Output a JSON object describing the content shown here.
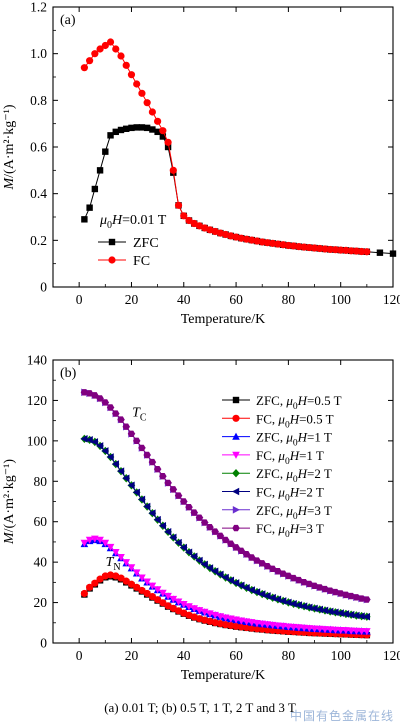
{
  "chart_data": [
    {
      "type": "scatter",
      "panel_label": "(a)",
      "xlabel": "Temperature/K",
      "ylabel_main": "M",
      "ylabel_unit": "/(A·m²·kg⁻¹)",
      "xlim": [
        -10,
        120
      ],
      "ylim": [
        0,
        1.2
      ],
      "xticks": [
        0,
        20,
        40,
        60,
        80,
        100,
        120
      ],
      "yticks": [
        0,
        0.2,
        0.4,
        0.6,
        0.8,
        1.0,
        1.2
      ],
      "ytick_labels": [
        "0",
        "0.2",
        "0.4",
        "0.6",
        "0.8",
        "1.0",
        "1.2"
      ],
      "field_annotation": "μ0H=0.01 T",
      "legend_position": "bottom-left",
      "series": [
        {
          "name": "ZFC",
          "color": "#000000",
          "marker": "square",
          "x": [
            2,
            4,
            6,
            8,
            10,
            12,
            14,
            16,
            18,
            20,
            22,
            24,
            26,
            28,
            30,
            32,
            34,
            36,
            38,
            40,
            42,
            44,
            46,
            48,
            50,
            52,
            54,
            56,
            58,
            60,
            62,
            64,
            66,
            68,
            70,
            72,
            74,
            76,
            78,
            80,
            82,
            84,
            86,
            88,
            90,
            92,
            94,
            96,
            98,
            100,
            102,
            104,
            106,
            108,
            110,
            115,
            120
          ],
          "y": [
            0.29,
            0.34,
            0.42,
            0.5,
            0.58,
            0.65,
            0.665,
            0.673,
            0.678,
            0.682,
            0.684,
            0.684,
            0.682,
            0.675,
            0.665,
            0.645,
            0.6,
            0.49,
            0.35,
            0.305,
            0.285,
            0.272,
            0.262,
            0.253,
            0.245,
            0.238,
            0.231,
            0.225,
            0.219,
            0.214,
            0.209,
            0.205,
            0.201,
            0.197,
            0.193,
            0.19,
            0.187,
            0.184,
            0.181,
            0.178,
            0.176,
            0.173,
            0.171,
            0.169,
            0.167,
            0.165,
            0.163,
            0.161,
            0.16,
            0.158,
            0.157,
            0.155,
            0.154,
            0.152,
            0.151,
            0.147,
            0.143
          ]
        },
        {
          "name": "FC",
          "color": "#ff0000",
          "marker": "circle",
          "x": [
            2,
            4,
            6,
            8,
            10,
            12,
            14,
            16,
            18,
            20,
            22,
            24,
            26,
            28,
            30,
            32,
            34,
            36,
            38,
            40,
            42,
            44,
            46,
            48,
            50,
            52,
            54,
            56,
            58,
            60,
            62,
            64,
            66,
            68,
            70,
            72,
            74,
            76,
            78,
            80,
            82,
            84,
            86,
            88,
            90,
            92,
            94,
            96,
            98,
            100,
            102,
            104,
            106,
            108,
            110
          ],
          "y": [
            0.94,
            0.97,
            1.0,
            1.02,
            1.035,
            1.05,
            1.02,
            0.99,
            0.95,
            0.91,
            0.87,
            0.83,
            0.79,
            0.75,
            0.71,
            0.67,
            0.62,
            0.5,
            0.35,
            0.305,
            0.285,
            0.272,
            0.262,
            0.253,
            0.245,
            0.238,
            0.231,
            0.225,
            0.219,
            0.214,
            0.209,
            0.205,
            0.201,
            0.197,
            0.193,
            0.19,
            0.187,
            0.184,
            0.181,
            0.178,
            0.176,
            0.173,
            0.171,
            0.169,
            0.167,
            0.165,
            0.163,
            0.161,
            0.16,
            0.158,
            0.157,
            0.155,
            0.154,
            0.152,
            0.151
          ]
        }
      ]
    },
    {
      "type": "scatter",
      "panel_label": "(b)",
      "xlabel": "Temperature/K",
      "ylabel_main": "M",
      "ylabel_unit": "/(A·m²·kg⁻¹)",
      "xlim": [
        -10,
        120
      ],
      "ylim": [
        0,
        140
      ],
      "xticks": [
        0,
        20,
        40,
        60,
        80,
        100,
        120
      ],
      "yticks": [
        0,
        20,
        40,
        60,
        80,
        100,
        120,
        140
      ],
      "ytick_labels": [
        "0",
        "20",
        "40",
        "60",
        "80",
        "100",
        "120",
        "140"
      ],
      "annotations": [
        {
          "text": "T",
          "sub": "C",
          "x": 23,
          "y": 112
        },
        {
          "text": "T",
          "sub": "N",
          "x": 13,
          "y": 38
        }
      ],
      "legend_position": "top-right",
      "series": [
        {
          "name": "ZFC, μ0H=0.5 T",
          "color": "#000000",
          "marker": "square",
          "profile": "low",
          "scale": 1.0
        },
        {
          "name": "FC, μ0H=0.5 T",
          "color": "#ff0000",
          "marker": "circle",
          "profile": "low",
          "scale": 1.02
        },
        {
          "name": "ZFC, μ0H=1 T",
          "color": "#0000ff",
          "marker": "triangle-up",
          "profile": "mid",
          "scale": 1.0
        },
        {
          "name": "FC, μ0H=1 T",
          "color": "#ff00ff",
          "marker": "triangle-down",
          "profile": "mid",
          "scale": 1.01
        },
        {
          "name": "ZFC, μ0H=2 T",
          "color": "#008000",
          "marker": "diamond",
          "profile": "high",
          "scale": 1.0
        },
        {
          "name": "FC, μ0H=2 T",
          "color": "#000080",
          "marker": "triangle-left",
          "profile": "high",
          "scale": 1.0
        },
        {
          "name": "ZFC, μ0H=3 T",
          "color": "#6a2fd0",
          "marker": "triangle-right",
          "profile": "top",
          "scale": 1.0
        },
        {
          "name": "FC, μ0H=3 T",
          "color": "#800080",
          "marker": "hexagon",
          "profile": "top",
          "scale": 1.0
        }
      ],
      "profiles": {
        "low": {
          "x": [
            2,
            4,
            6,
            8,
            10,
            12,
            14,
            16,
            18,
            20,
            22,
            24,
            26,
            28,
            30,
            32,
            34,
            36,
            38,
            40,
            42,
            44,
            46,
            48,
            50,
            52,
            54,
            56,
            58,
            60,
            62,
            64,
            66,
            68,
            70,
            72,
            74,
            76,
            78,
            80,
            82,
            84,
            86,
            88,
            90,
            92,
            94,
            96,
            98,
            100,
            102,
            104,
            106,
            108,
            110
          ],
          "y": [
            24,
            27,
            29,
            31,
            32.5,
            33,
            32.5,
            31.5,
            30,
            28.5,
            27,
            25.5,
            24,
            22.5,
            21,
            19.5,
            18,
            16.8,
            15.6,
            14.5,
            13.5,
            12.6,
            11.8,
            11.1,
            10.5,
            9.9,
            9.4,
            8.9,
            8.5,
            8.1,
            7.8,
            7.5,
            7.2,
            6.9,
            6.7,
            6.4,
            6.2,
            6.0,
            5.8,
            5.6,
            5.5,
            5.3,
            5.2,
            5.0,
            4.9,
            4.8,
            4.7,
            4.6,
            4.5,
            4.4,
            4.3,
            4.2,
            4.1,
            4.0,
            3.9
          ]
        },
        "mid": {
          "x": [
            2,
            4,
            6,
            8,
            10,
            12,
            14,
            16,
            18,
            20,
            22,
            24,
            26,
            28,
            30,
            32,
            34,
            36,
            38,
            40,
            42,
            44,
            46,
            48,
            50,
            52,
            54,
            56,
            58,
            60,
            62,
            64,
            66,
            68,
            70,
            72,
            74,
            76,
            78,
            80,
            82,
            84,
            86,
            88,
            90,
            92,
            94,
            96,
            98,
            100,
            102,
            104,
            106,
            108,
            110
          ],
          "y": [
            49,
            50.5,
            51,
            50.5,
            49,
            47,
            44.5,
            42,
            39.5,
            37,
            34.5,
            32,
            30,
            28,
            26.2,
            24.5,
            23,
            21.5,
            20.2,
            19,
            17.9,
            16.9,
            16,
            15.2,
            14.4,
            13.7,
            13,
            12.4,
            11.9,
            11.4,
            10.9,
            10.5,
            10.1,
            9.7,
            9.4,
            9.1,
            8.8,
            8.5,
            8.3,
            8.0,
            7.8,
            7.6,
            7.4,
            7.2,
            7.0,
            6.9,
            6.7,
            6.6,
            6.4,
            6.3,
            6.2,
            6.0,
            5.9,
            5.8,
            5.7
          ]
        },
        "high": {
          "x": [
            2,
            4,
            6,
            8,
            10,
            12,
            14,
            16,
            18,
            20,
            22,
            24,
            26,
            28,
            30,
            32,
            34,
            36,
            38,
            40,
            42,
            44,
            46,
            48,
            50,
            52,
            54,
            56,
            58,
            60,
            62,
            64,
            66,
            68,
            70,
            72,
            74,
            76,
            78,
            80,
            82,
            84,
            86,
            88,
            90,
            92,
            94,
            96,
            98,
            100,
            102,
            104,
            106,
            108,
            110
          ],
          "y": [
            101,
            100.5,
            99.5,
            97.5,
            95,
            92,
            88.5,
            85,
            81.5,
            78,
            74.5,
            71,
            67.5,
            64.2,
            61,
            58,
            55,
            52.2,
            49.6,
            47.2,
            44.9,
            42.8,
            40.8,
            38.9,
            37.1,
            35.5,
            33.9,
            32.4,
            31,
            29.7,
            28.5,
            27.3,
            26.2,
            25.2,
            24.2,
            23.3,
            22.4,
            21.6,
            20.8,
            20.1,
            19.4,
            18.8,
            18.2,
            17.6,
            17.1,
            16.6,
            16.1,
            15.6,
            15.2,
            14.8,
            14.4,
            14.0,
            13.6,
            13.3,
            13.0
          ]
        },
        "top": {
          "x": [
            2,
            4,
            6,
            8,
            10,
            12,
            14,
            16,
            18,
            20,
            22,
            24,
            26,
            28,
            30,
            32,
            34,
            36,
            38,
            40,
            42,
            44,
            46,
            48,
            50,
            52,
            54,
            56,
            58,
            60,
            62,
            64,
            66,
            68,
            70,
            72,
            74,
            76,
            78,
            80,
            82,
            84,
            86,
            88,
            90,
            92,
            94,
            96,
            98,
            100,
            102,
            104,
            106,
            108,
            110
          ],
          "y": [
            124,
            123.5,
            122.5,
            121,
            119,
            116.5,
            113.5,
            110.5,
            107,
            103.5,
            100,
            96.5,
            93,
            89.5,
            86,
            82.5,
            79.2,
            76,
            72.9,
            70,
            67.2,
            64.5,
            62,
            59.6,
            57.3,
            55.1,
            53,
            51,
            49.1,
            47.3,
            45.6,
            43.9,
            42.3,
            40.8,
            39.4,
            38,
            36.7,
            35.5,
            34.3,
            33.2,
            32.1,
            31.1,
            30.1,
            29.2,
            28.3,
            27.5,
            26.7,
            25.9,
            25.2,
            24.5,
            23.8,
            23.2,
            22.6,
            22.0,
            21.5
          ]
        }
      }
    }
  ],
  "caption": "(a) 0.01 T; (b) 0.5 T, 1 T, 2 T and 3 T",
  "watermark": "中国有色金属在线"
}
